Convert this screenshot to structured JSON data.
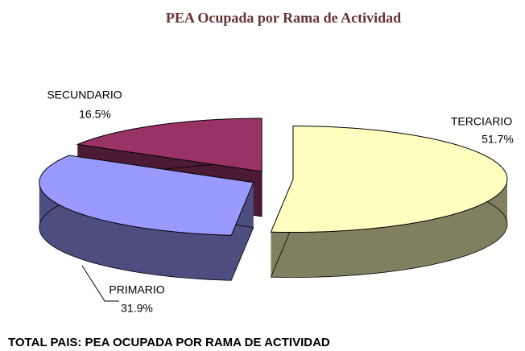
{
  "chart_data": {
    "type": "pie",
    "title": "PEA Ocupada por Rama de Actividad",
    "caption": "TOTAL PAIS: PEA OCUPADA POR RAMA DE ACTIVIDAD",
    "categories": [
      "TERCIARIO",
      "PRIMARIO",
      "SECUNDARIO"
    ],
    "values": [
      51.7,
      31.9,
      16.5
    ],
    "value_labels": [
      "51.7%",
      "31.9%",
      "16.5%"
    ],
    "colors": [
      "#ffffc0",
      "#9999ff",
      "#993366"
    ]
  }
}
